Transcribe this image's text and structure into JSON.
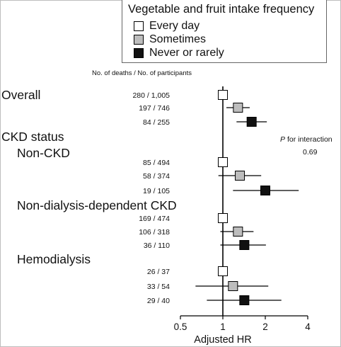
{
  "chart_data": {
    "type": "forest",
    "legend": {
      "title": "Vegetable and fruit intake frequency",
      "entries": [
        {
          "label": "Every day",
          "color": "#ffffff"
        },
        {
          "label": "Sometimes",
          "color": "#bdbdbd"
        },
        {
          "label": "Never or rarely",
          "color": "#111111"
        }
      ]
    },
    "column_header": "No. of deaths / No. of participants",
    "interaction_label": "for interaction",
    "interaction_label_prefix": "P",
    "interaction_value": "0.69",
    "xlabel": "Adjusted HR",
    "xscale": "log",
    "xlim": [
      0.5,
      4
    ],
    "xticks": [
      0.5,
      1,
      2,
      4
    ],
    "xtick_labels": [
      "0.5",
      "1",
      "2",
      "4"
    ],
    "reference_line": 1,
    "headings": [
      {
        "text": "Overall",
        "level": 0
      },
      {
        "text": "CKD status",
        "level": 0
      },
      {
        "text": "Non-CKD",
        "level": 1
      },
      {
        "text": "Non-dialysis-dependent CKD",
        "level": 1
      },
      {
        "text": "Hemodialysis",
        "level": 1
      }
    ],
    "groups": [
      {
        "group": "Overall",
        "rows": [
          {
            "category": "Every day",
            "counts": "280 / 1,005",
            "hr": 1.0,
            "ci": null
          },
          {
            "category": "Sometimes",
            "counts": "197 / 746",
            "hr": 1.28,
            "ci": [
              1.06,
              1.55
            ]
          },
          {
            "category": "Never or rarely",
            "counts": "84 / 255",
            "hr": 1.6,
            "ci": [
              1.25,
              2.05
            ]
          }
        ]
      },
      {
        "group": "Non-CKD",
        "rows": [
          {
            "category": "Every day",
            "counts": "85 / 494",
            "hr": 1.0,
            "ci": null
          },
          {
            "category": "Sometimes",
            "counts": "58 / 374",
            "hr": 1.32,
            "ci": [
              0.93,
              1.87
            ]
          },
          {
            "category": "Never or rarely",
            "counts": "19 / 105",
            "hr": 2.0,
            "ci": [
              1.18,
              3.45
            ]
          }
        ]
      },
      {
        "group": "Non-dialysis-dependent CKD",
        "rows": [
          {
            "category": "Every day",
            "counts": "169 / 474",
            "hr": 1.0,
            "ci": null
          },
          {
            "category": "Sometimes",
            "counts": "106 / 318",
            "hr": 1.28,
            "ci": [
              0.96,
              1.65
            ]
          },
          {
            "category": "Never or rarely",
            "counts": "36 / 110",
            "hr": 1.42,
            "ci": [
              0.96,
              2.02
            ]
          }
        ]
      },
      {
        "group": "Hemodialysis",
        "rows": [
          {
            "category": "Every day",
            "counts": "26 / 37",
            "hr": 1.0,
            "ci": null
          },
          {
            "category": "Sometimes",
            "counts": "33 / 54",
            "hr": 1.18,
            "ci": [
              0.64,
              2.1
            ]
          },
          {
            "category": "Never or rarely",
            "counts": "29 / 40",
            "hr": 1.42,
            "ci": [
              0.77,
              2.6
            ]
          }
        ]
      }
    ]
  }
}
